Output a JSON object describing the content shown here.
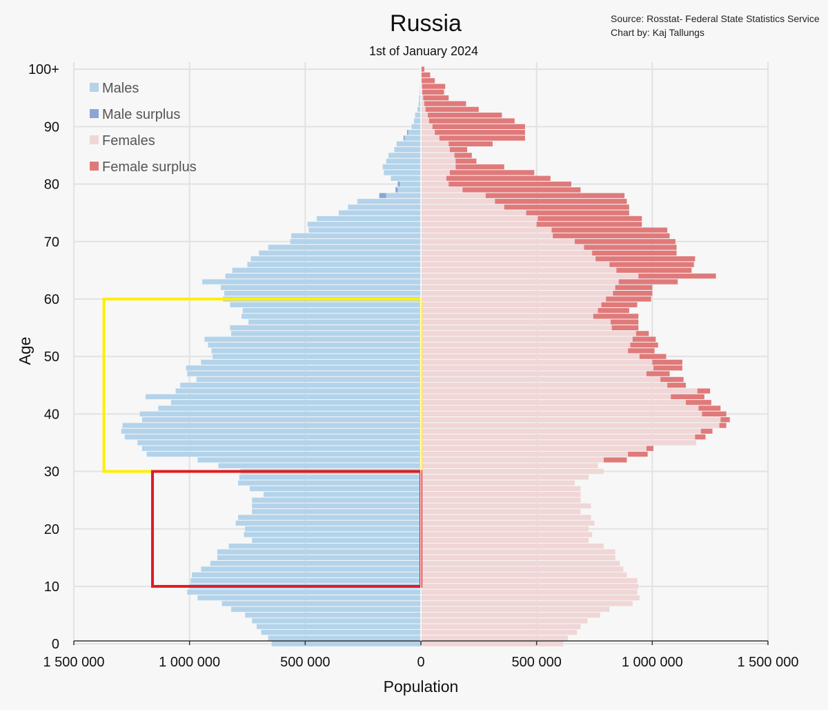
{
  "chart_data": {
    "type": "bar",
    "orientation": "horizontal-population-pyramid",
    "title": "Russia",
    "subtitle": "1st of January 2024",
    "source": [
      "Source: Rosstat- Federal State Statistics Service",
      "Chart by: Kaj Tallungs"
    ],
    "xlabel": "Population",
    "ylabel": "Age",
    "xlim": [
      -1500000,
      1500000
    ],
    "ylim": [
      0,
      100
    ],
    "x_ticks": [
      {
        "value": -1500000,
        "label": "1 500 000"
      },
      {
        "value": -1000000,
        "label": "1 000 000"
      },
      {
        "value": -500000,
        "label": "500 000"
      },
      {
        "value": 0,
        "label": "0"
      },
      {
        "value": 500000,
        "label": "500 000"
      },
      {
        "value": 1000000,
        "label": "1 000 000"
      },
      {
        "value": 1500000,
        "label": "1 500 000"
      }
    ],
    "y_ticks": [
      {
        "value": 0,
        "label": "0"
      },
      {
        "value": 10,
        "label": "10"
      },
      {
        "value": 20,
        "label": "20"
      },
      {
        "value": 30,
        "label": "30"
      },
      {
        "value": 40,
        "label": "40"
      },
      {
        "value": 50,
        "label": "50"
      },
      {
        "value": 60,
        "label": "60"
      },
      {
        "value": 70,
        "label": "70"
      },
      {
        "value": 80,
        "label": "80"
      },
      {
        "value": 90,
        "label": "90"
      },
      {
        "value": 100,
        "label": "100+"
      }
    ],
    "grid": true,
    "legend_position": "top-left",
    "legend": [
      {
        "name": "Males",
        "color": "#b3d3ea"
      },
      {
        "name": "Male surplus",
        "color": "#8aa5d6"
      },
      {
        "name": "Females",
        "color": "#f0d6d6"
      },
      {
        "name": "Female surplus",
        "color": "#e07a7a"
      }
    ],
    "colors": {
      "male": "#b3d3ea",
      "male_surplus": "#8aa5d6",
      "female": "#f0d6d6",
      "female_surplus": "#e07a7a",
      "highlight_yellow": "#ffee00",
      "highlight_red": "#e01b24"
    },
    "ages": [
      0,
      1,
      2,
      3,
      4,
      5,
      6,
      7,
      8,
      9,
      10,
      11,
      12,
      13,
      14,
      15,
      16,
      17,
      18,
      19,
      20,
      21,
      22,
      23,
      24,
      25,
      26,
      27,
      28,
      29,
      30,
      31,
      32,
      33,
      34,
      35,
      36,
      37,
      38,
      39,
      40,
      41,
      42,
      43,
      44,
      45,
      46,
      47,
      48,
      49,
      50,
      51,
      52,
      53,
      54,
      55,
      56,
      57,
      58,
      59,
      60,
      61,
      62,
      63,
      64,
      65,
      66,
      67,
      68,
      69,
      70,
      71,
      72,
      73,
      74,
      75,
      76,
      77,
      78,
      79,
      80,
      81,
      82,
      83,
      84,
      85,
      86,
      87,
      88,
      89,
      90,
      91,
      92,
      93,
      94,
      95,
      96,
      97,
      98,
      99,
      100
    ],
    "males": [
      645000,
      660000,
      690000,
      710000,
      730000,
      760000,
      820000,
      860000,
      965000,
      1010000,
      1000000,
      995000,
      990000,
      950000,
      910000,
      880000,
      880000,
      830000,
      730000,
      765000,
      760000,
      800000,
      790000,
      730000,
      730000,
      730000,
      680000,
      740000,
      790000,
      785000,
      780000,
      875000,
      965000,
      1185000,
      1205000,
      1225000,
      1280000,
      1295000,
      1290000,
      1205000,
      1215000,
      1135000,
      1080000,
      1190000,
      1060000,
      1040000,
      970000,
      1010000,
      1015000,
      950000,
      900000,
      905000,
      920000,
      935000,
      820000,
      825000,
      745000,
      775000,
      770000,
      825000,
      855000,
      850000,
      865000,
      945000,
      845000,
      815000,
      750000,
      735000,
      700000,
      660000,
      565000,
      560000,
      485000,
      490000,
      450000,
      355000,
      315000,
      275000,
      150000,
      100000,
      90000,
      130000,
      160000,
      165000,
      150000,
      140000,
      115000,
      105000,
      70000,
      55000,
      40000,
      30000,
      25000,
      15000,
      10000,
      8000,
      5000,
      4000,
      3000,
      2000,
      1000
    ],
    "females": [
      615000,
      635000,
      675000,
      690000,
      720000,
      775000,
      815000,
      915000,
      945000,
      935000,
      940000,
      935000,
      890000,
      875000,
      860000,
      840000,
      840000,
      790000,
      725000,
      740000,
      725000,
      750000,
      735000,
      690000,
      735000,
      690000,
      690000,
      690000,
      665000,
      725000,
      790000,
      765000,
      790000,
      895000,
      975000,
      1190000,
      1185000,
      1210000,
      1290000,
      1295000,
      1215000,
      1200000,
      1145000,
      1080000,
      1195000,
      1065000,
      1035000,
      975000,
      1005000,
      1000000,
      945000,
      895000,
      905000,
      915000,
      930000,
      825000,
      820000,
      745000,
      765000,
      780000,
      800000,
      830000,
      840000,
      855000,
      940000,
      845000,
      815000,
      755000,
      740000,
      705000,
      665000,
      570000,
      565000,
      500000,
      505000,
      455000,
      360000,
      320000,
      280000,
      180000,
      120000,
      110000,
      125000,
      150000,
      150000,
      145000,
      125000,
      120000,
      80000,
      60000,
      50000,
      35000,
      30000,
      20000,
      15000,
      10000,
      6000,
      5000,
      3000,
      2000,
      1000
    ],
    "female_bar_ends": [
      615000,
      635000,
      675000,
      690000,
      720000,
      775000,
      815000,
      915000,
      945000,
      935000,
      940000,
      935000,
      890000,
      875000,
      860000,
      840000,
      840000,
      790000,
      725000,
      740000,
      725000,
      750000,
      735000,
      690000,
      735000,
      690000,
      690000,
      690000,
      665000,
      725000,
      790000,
      765000,
      890000,
      980000,
      1005000,
      1190000,
      1230000,
      1260000,
      1320000,
      1335000,
      1320000,
      1295000,
      1255000,
      1225000,
      1250000,
      1145000,
      1135000,
      1075000,
      1130000,
      1130000,
      1060000,
      1010000,
      1025000,
      1015000,
      985000,
      940000,
      940000,
      940000,
      900000,
      935000,
      995000,
      1000000,
      1000000,
      1110000,
      1275000,
      1170000,
      1180000,
      1185000,
      1105000,
      1105000,
      1100000,
      1075000,
      1065000,
      955000,
      955000,
      900000,
      900000,
      890000,
      880000,
      690000,
      650000,
      560000,
      490000,
      360000,
      240000,
      220000,
      200000,
      310000,
      450000,
      450000,
      450000,
      405000,
      350000,
      250000,
      195000,
      120000,
      100000,
      105000,
      60000,
      40000,
      15000
    ],
    "male_bar_ends": [
      645000,
      660000,
      690000,
      710000,
      730000,
      760000,
      820000,
      860000,
      965000,
      1010000,
      1000000,
      995000,
      990000,
      950000,
      910000,
      880000,
      880000,
      830000,
      730000,
      765000,
      760000,
      800000,
      790000,
      730000,
      730000,
      730000,
      680000,
      740000,
      790000,
      785000,
      780000,
      875000,
      965000,
      1185000,
      1205000,
      1225000,
      1280000,
      1295000,
      1290000,
      1205000,
      1215000,
      1135000,
      1080000,
      1190000,
      1060000,
      1040000,
      970000,
      1010000,
      1015000,
      950000,
      900000,
      905000,
      920000,
      935000,
      820000,
      825000,
      745000,
      775000,
      770000,
      825000,
      855000,
      850000,
      865000,
      945000,
      845000,
      815000,
      750000,
      735000,
      700000,
      660000,
      565000,
      560000,
      485000,
      490000,
      450000,
      355000,
      315000,
      275000,
      180000,
      110000,
      100000,
      130000,
      160000,
      165000,
      150000,
      140000,
      115000,
      105000,
      75000,
      60000,
      40000,
      30000,
      25000,
      15000,
      10000,
      8000,
      5000,
      4000,
      3000,
      2000,
      1000
    ],
    "highlights": [
      {
        "name": "yellow-box",
        "age_from": 30,
        "age_to": 60,
        "x_from": -1370000,
        "x_to": 0,
        "color": "#ffee00"
      },
      {
        "name": "red-box",
        "age_from": 10,
        "age_to": 30,
        "x_from": -1160000,
        "x_to": 0,
        "color": "#e01b24"
      }
    ]
  }
}
